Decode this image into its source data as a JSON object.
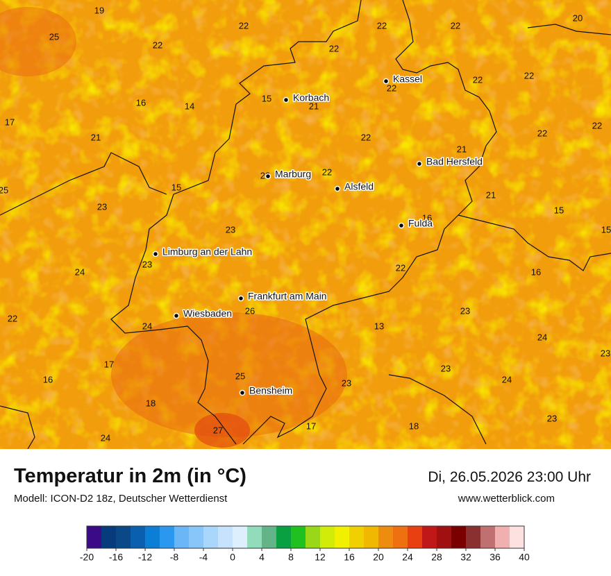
{
  "title": "Temperatur in 2m (in °C)",
  "subtitle": "Modell: ICON-D2 18z, Deutscher Wetterdienst",
  "date": "Di, 26.05.2026 23:00 Uhr",
  "website": "www.wetterblick.com",
  "cities": [
    "Kassel",
    "Korbach",
    "Bad Hersfeld",
    "Marburg",
    "Alsfeld",
    "Fulda",
    "Limburg an der Lahn",
    "Frankfurt am Main",
    "Wiesbaden",
    "Bensheim"
  ],
  "temperature_labels": [
    19,
    25,
    22,
    22,
    22,
    22,
    22,
    20,
    22,
    22,
    22,
    16,
    14,
    15,
    21,
    17,
    21,
    22,
    22,
    22,
    21,
    22,
    22,
    25,
    15,
    21,
    23,
    15,
    15,
    16,
    23,
    23,
    24,
    22,
    16,
    22,
    24,
    26,
    23,
    13,
    24,
    23,
    17,
    16,
    25,
    23,
    24,
    23,
    18,
    17,
    18,
    23,
    24,
    27
  ],
  "colorbar": {
    "ticks": [
      -20,
      -16,
      -12,
      -8,
      -4,
      0,
      4,
      8,
      12,
      16,
      20,
      24,
      28,
      32,
      36,
      40
    ],
    "colors": [
      "#3a0a87",
      "#063b7c",
      "#0a4888",
      "#0a5fae",
      "#0b7ed6",
      "#2a98ee",
      "#6ab6f7",
      "#88c6f9",
      "#a9d6fb",
      "#c6e2fc",
      "#ddeefd",
      "#92dcbc",
      "#64b48a",
      "#08a040",
      "#20c020",
      "#98d818",
      "#d0ec08",
      "#f0f000",
      "#f0d000",
      "#f0b800",
      "#ee8c10",
      "#ee7010",
      "#e84010",
      "#c01818",
      "#a01010",
      "#7a0000",
      "#8a3030",
      "#c07070",
      "#f0b0b0",
      "#fde0e0"
    ]
  }
}
